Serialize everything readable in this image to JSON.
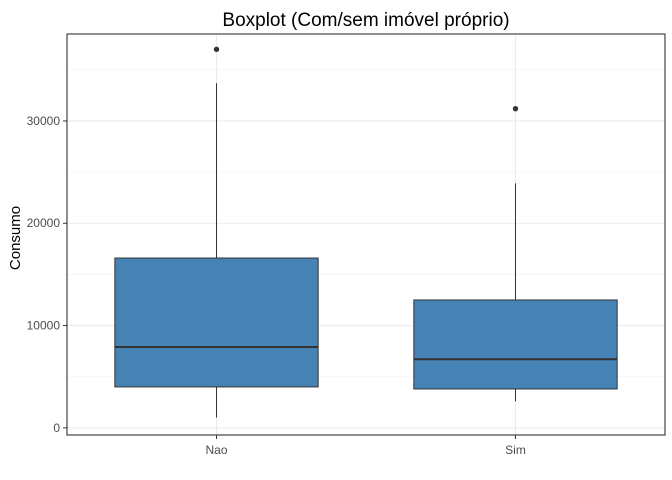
{
  "chart_data": {
    "type": "boxplot",
    "title": "Boxplot (Com/sem imóvel próprio)",
    "xlabel": "",
    "ylabel": "Consumo",
    "categories": [
      "Nao",
      "Sim"
    ],
    "ylim": [
      -700,
      38500
    ],
    "y_ticks": [
      0,
      10000,
      20000,
      30000
    ],
    "y_tick_labels": [
      "0",
      "10000",
      "20000",
      "30000"
    ],
    "grid": true,
    "legend": "none",
    "box_fill": "#4682b4",
    "series": [
      {
        "category": "Nao",
        "whisker_low": 1000,
        "q1": 4000,
        "median": 7900,
        "q3": 16600,
        "whisker_high": 33700,
        "outliers": [
          37000
        ]
      },
      {
        "category": "Sim",
        "whisker_low": 2600,
        "q1": 3800,
        "median": 6700,
        "q3": 12500,
        "whisker_high": 23900,
        "outliers": [
          31200
        ]
      }
    ]
  }
}
